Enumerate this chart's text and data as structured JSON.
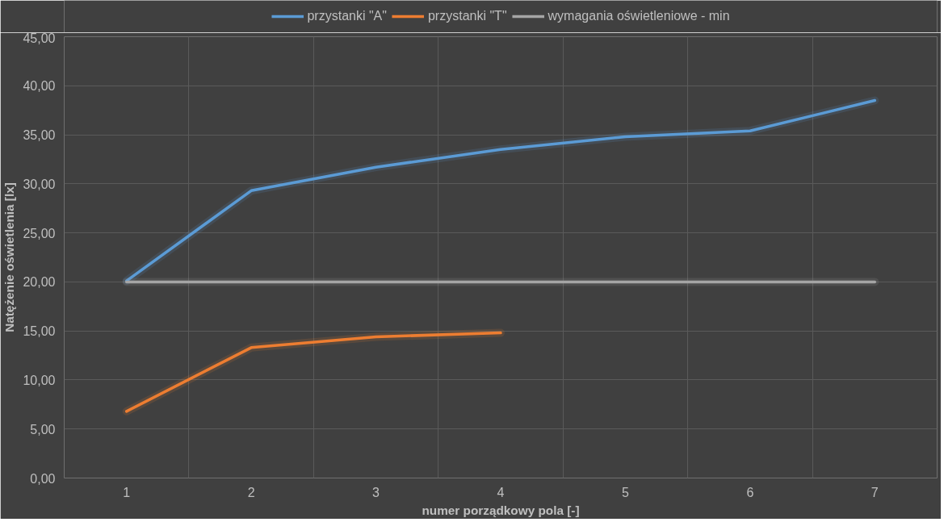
{
  "chart_data": {
    "type": "line",
    "xlabel": "numer porządkowy pola [-]",
    "ylabel": "Natężenie oświetlenia [lx]",
    "categories": [
      "1",
      "2",
      "3",
      "4",
      "5",
      "6",
      "7"
    ],
    "series": [
      {
        "name": "przystanki \"A\"",
        "color": "#5b9bd5",
        "values": [
          20.1,
          29.3,
          31.7,
          33.5,
          34.8,
          35.4,
          38.5
        ]
      },
      {
        "name": "przystanki \"T\"",
        "color": "#ed7d31",
        "values": [
          6.8,
          13.3,
          14.4,
          14.8,
          null,
          null,
          null
        ]
      },
      {
        "name": "wymagania oświetleniowe - min",
        "color": "#a5a5a5",
        "values": [
          20,
          20,
          20,
          20,
          20,
          20,
          20
        ]
      }
    ],
    "ylim": [
      0,
      45
    ],
    "yticks": [
      {
        "value": 0,
        "label": "0,00"
      },
      {
        "value": 5,
        "label": "5,00"
      },
      {
        "value": 10,
        "label": "10,00"
      },
      {
        "value": 15,
        "label": "15,00"
      },
      {
        "value": 20,
        "label": "20,00"
      },
      {
        "value": 25,
        "label": "25,00"
      },
      {
        "value": 30,
        "label": "30,00"
      },
      {
        "value": 35,
        "label": "35,00"
      },
      {
        "value": 40,
        "label": "40,00"
      },
      {
        "value": 45,
        "label": "45,00"
      }
    ],
    "grid": true,
    "legend": "top",
    "marker": "none",
    "line_style": "solid"
  }
}
